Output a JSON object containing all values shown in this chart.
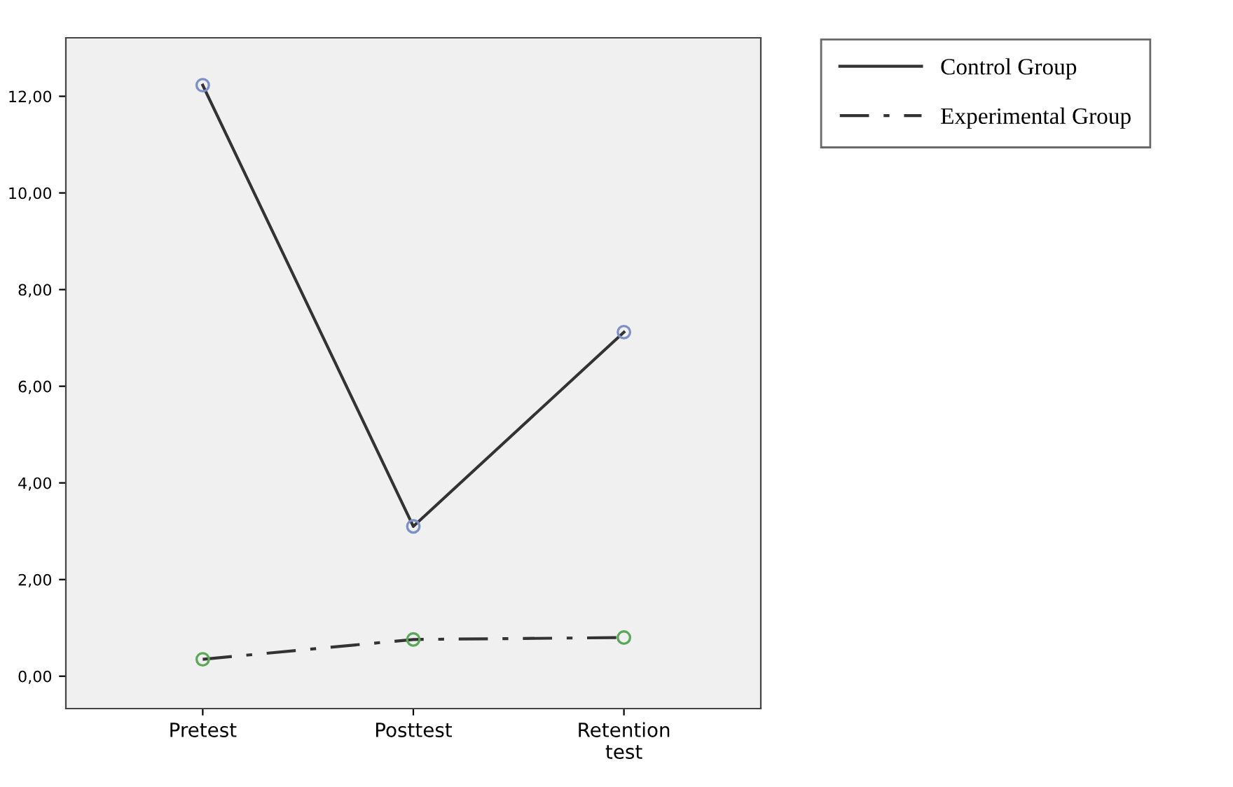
{
  "chart_data": {
    "type": "line",
    "categories": [
      "Pretest",
      "Posttest",
      "Retention\ntest"
    ],
    "series": [
      {
        "name": "Control Group",
        "color": "#333333",
        "line_style": "solid",
        "colors": [
          "#7d8fc8",
          "#7d8fc8",
          "#7d8fc8"
        ],
        "values": [
          12.23,
          3.1,
          7.12
        ]
      },
      {
        "name": "Experimental Group",
        "color": "#333333",
        "line_style": "dashdot",
        "colors": [
          "#5aa85a",
          "#5aa85a",
          "#5aa85a"
        ],
        "values": [
          0.35,
          0.76,
          0.8
        ]
      }
    ],
    "ylim": [
      -0.67,
      13.21
    ],
    "yticks": [
      {
        "value": 0,
        "label": "0,00"
      },
      {
        "value": 2,
        "label": "2,00"
      },
      {
        "value": 4,
        "label": "4,00"
      },
      {
        "value": 6,
        "label": "6,00"
      },
      {
        "value": 8,
        "label": "8,00"
      },
      {
        "value": 10,
        "label": "10,00"
      },
      {
        "value": 12,
        "label": "12,00"
      }
    ],
    "marker": "circle",
    "grid": false,
    "legend": "top right"
  }
}
